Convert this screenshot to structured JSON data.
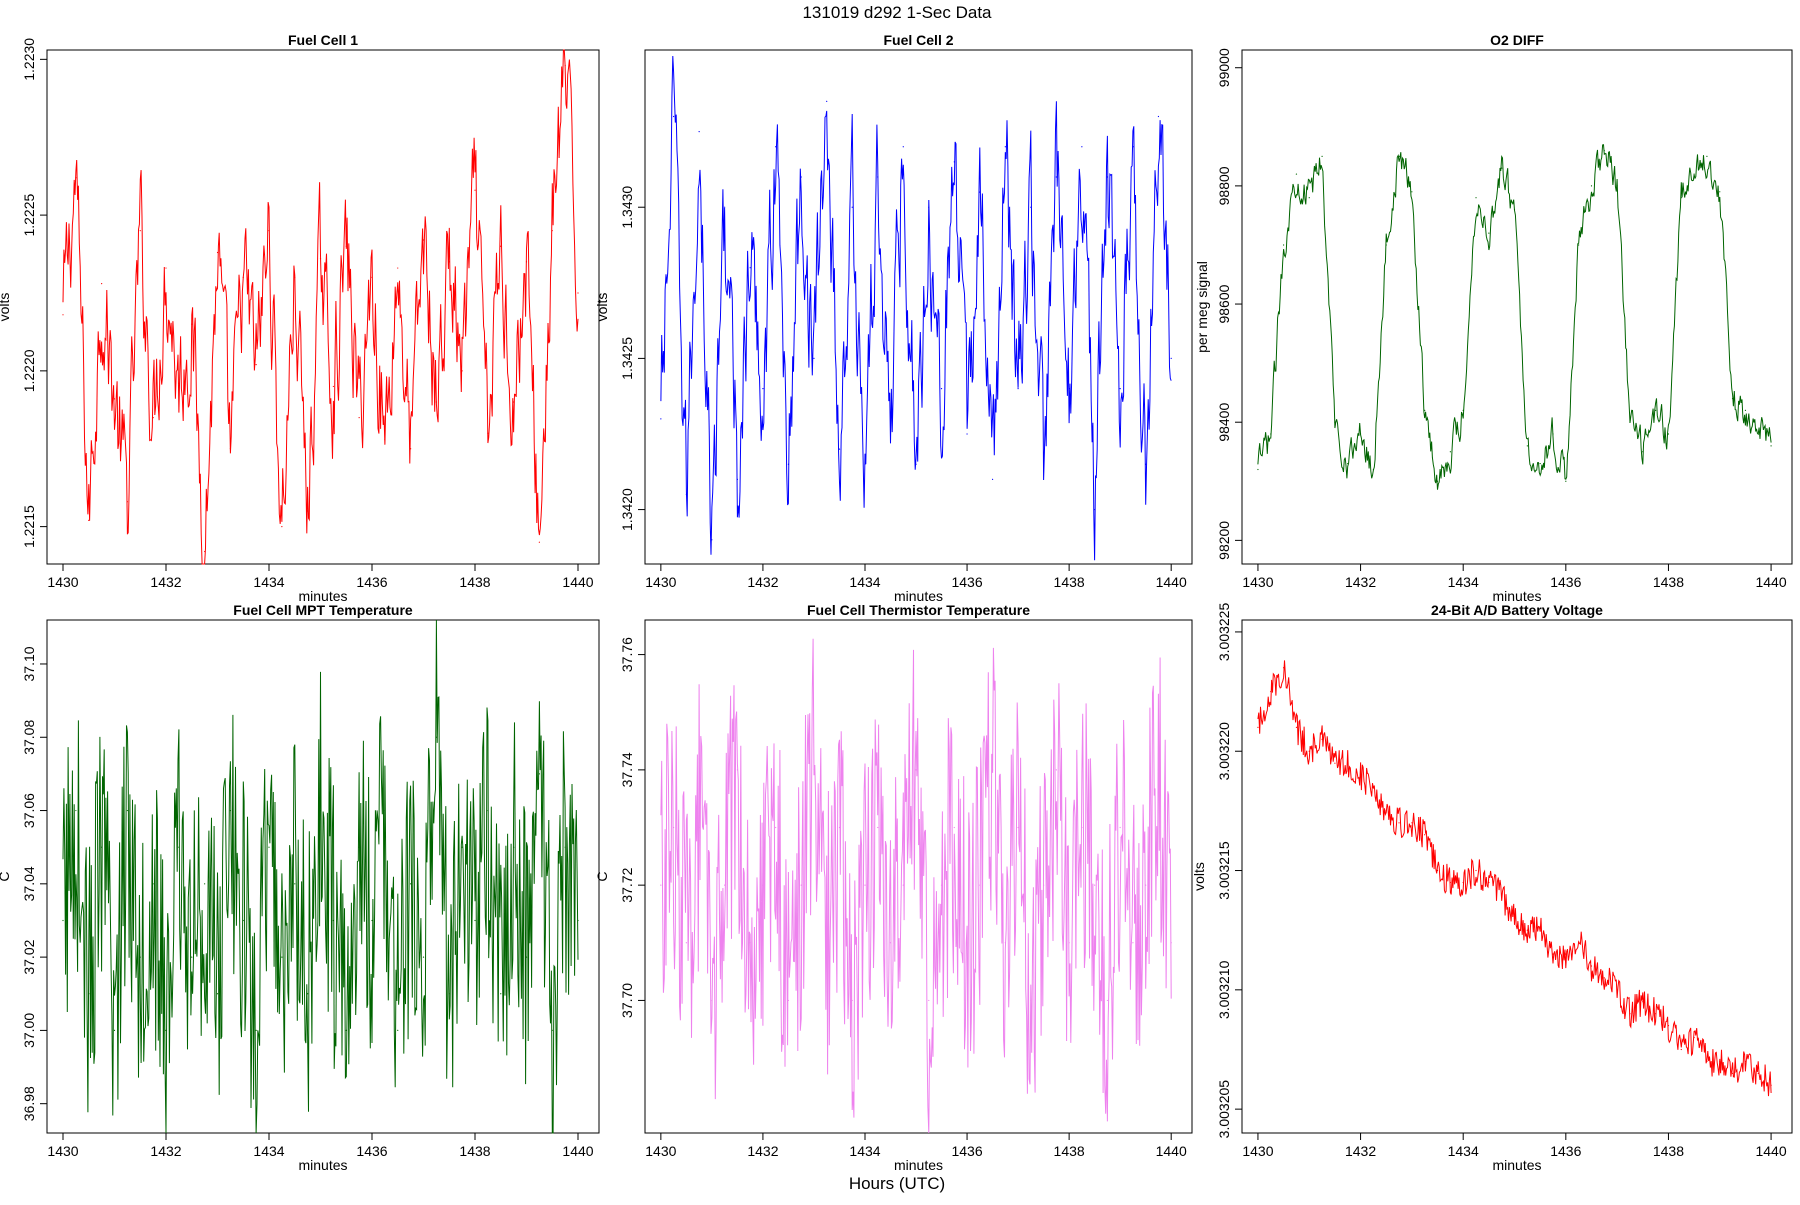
{
  "figure": {
    "title": "131019   d292   1-Sec Data",
    "xlabel": "Hours (UTC)"
  },
  "chart_data": [
    {
      "type": "line",
      "title": "Fuel Cell 1",
      "xlabel": "minutes",
      "ylabel": "volts",
      "color": "#ff0000",
      "xlim": [
        1430,
        1440
      ],
      "ylim": [
        1.22138,
        1.22303
      ],
      "xticks": [
        1430,
        1432,
        1434,
        1436,
        1438,
        1440
      ],
      "xtick_labels": [
        "1430",
        "1432",
        "1434",
        "1436",
        "1438",
        "1440"
      ],
      "yticks": [
        1.2215,
        1.222,
        1.2225,
        1.223
      ],
      "ytick_labels": [
        "1.2215",
        "1.2220",
        "1.2225",
        "1.2230"
      ],
      "x": [
        1430.0,
        1430.25,
        1430.5,
        1430.75,
        1431.0,
        1431.25,
        1431.5,
        1431.75,
        1432.0,
        1432.25,
        1432.5,
        1432.75,
        1433.0,
        1433.25,
        1433.5,
        1433.75,
        1434.0,
        1434.25,
        1434.5,
        1434.75,
        1435.0,
        1435.25,
        1435.5,
        1435.75,
        1436.0,
        1436.25,
        1436.5,
        1436.75,
        1437.0,
        1437.25,
        1437.5,
        1437.75,
        1438.0,
        1438.25,
        1438.5,
        1438.75,
        1439.0,
        1439.25,
        1439.5,
        1439.75,
        1440.0
      ],
      "values": [
        1.22218,
        1.22262,
        1.22152,
        1.22228,
        1.22191,
        1.22158,
        1.22245,
        1.22185,
        1.22233,
        1.22196,
        1.22215,
        1.22142,
        1.22238,
        1.22175,
        1.2223,
        1.22202,
        1.22245,
        1.2215,
        1.2223,
        1.22155,
        1.22236,
        1.22195,
        1.2224,
        1.22185,
        1.2223,
        1.22178,
        1.22233,
        1.22175,
        1.22242,
        1.2219,
        1.22235,
        1.222,
        1.22258,
        1.2218,
        1.2224,
        1.2219,
        1.22235,
        1.22145,
        1.22245,
        1.22298,
        1.22225
      ]
    },
    {
      "type": "line",
      "title": "Fuel Cell 2",
      "xlabel": "minutes",
      "ylabel": "volts",
      "color": "#0000ff",
      "xlim": [
        1430,
        1440
      ],
      "ylim": [
        1.34182,
        1.34352
      ],
      "xticks": [
        1430,
        1432,
        1434,
        1436,
        1438,
        1440
      ],
      "xtick_labels": [
        "1430",
        "1432",
        "1434",
        "1436",
        "1438",
        "1440"
      ],
      "yticks": [
        1.342,
        1.3425,
        1.343
      ],
      "ytick_labels": [
        "1.3420",
        "1.3425",
        "1.3430"
      ],
      "x": [
        1430.0,
        1430.25,
        1430.5,
        1430.75,
        1431.0,
        1431.25,
        1431.5,
        1431.75,
        1432.0,
        1432.25,
        1432.5,
        1432.75,
        1433.0,
        1433.25,
        1433.5,
        1433.75,
        1434.0,
        1434.25,
        1434.5,
        1434.75,
        1435.0,
        1435.25,
        1435.5,
        1435.75,
        1436.0,
        1436.25,
        1436.5,
        1436.75,
        1437.0,
        1437.25,
        1437.5,
        1437.75,
        1438.0,
        1438.25,
        1438.5,
        1438.75,
        1439.0,
        1439.25,
        1439.5,
        1439.75,
        1440.0
      ],
      "values": [
        1.3423,
        1.3433,
        1.34205,
        1.34325,
        1.3419,
        1.343,
        1.3421,
        1.3428,
        1.3424,
        1.3432,
        1.34215,
        1.3431,
        1.3425,
        1.34335,
        1.3422,
        1.343,
        1.34215,
        1.3431,
        1.3423,
        1.3432,
        1.34215,
        1.343,
        1.3424,
        1.34315,
        1.34225,
        1.34305,
        1.3421,
        1.3432,
        1.3424,
        1.343,
        1.34215,
        1.3431,
        1.3424,
        1.3432,
        1.342,
        1.3431,
        1.3424,
        1.3432,
        1.34215,
        1.3433,
        1.3425
      ]
    },
    {
      "type": "line",
      "title": "O2 DIFF",
      "xlabel": "minutes",
      "ylabel": "per meg signal",
      "color": "#006400",
      "xlim": [
        1430,
        1440
      ],
      "ylim": [
        98160,
        99030
      ],
      "xticks": [
        1430,
        1432,
        1434,
        1436,
        1438,
        1440
      ],
      "xtick_labels": [
        "1430",
        "1432",
        "1434",
        "1436",
        "1438",
        "1440"
      ],
      "yticks": [
        98200,
        98400,
        98600,
        98800,
        99000
      ],
      "ytick_labels": [
        "98200",
        "98400",
        "98600",
        "98800",
        "99000"
      ],
      "x": [
        1430.0,
        1430.25,
        1430.5,
        1430.75,
        1431.0,
        1431.25,
        1431.5,
        1431.75,
        1432.0,
        1432.25,
        1432.5,
        1432.75,
        1433.0,
        1433.25,
        1433.5,
        1433.75,
        1434.0,
        1434.25,
        1434.5,
        1434.75,
        1435.0,
        1435.25,
        1435.5,
        1435.75,
        1436.0,
        1436.25,
        1436.5,
        1436.75,
        1437.0,
        1437.25,
        1437.5,
        1437.75,
        1438.0,
        1438.25,
        1438.5,
        1438.75,
        1439.0,
        1439.25,
        1439.5,
        1439.75,
        1440.0
      ],
      "values": [
        98320,
        98380,
        98700,
        98820,
        98780,
        98850,
        98400,
        98330,
        98380,
        98320,
        98700,
        98850,
        98790,
        98420,
        98300,
        98350,
        98420,
        98780,
        98720,
        98830,
        98760,
        98360,
        98330,
        98380,
        98300,
        98700,
        98800,
        98860,
        98800,
        98400,
        98350,
        98420,
        98380,
        98780,
        98820,
        98850,
        98790,
        98440,
        98420,
        98380,
        98360
      ]
    },
    {
      "type": "line",
      "title": "Fuel Cell MPT Temperature",
      "xlabel": "minutes",
      "ylabel": "C",
      "color": "#006400",
      "xlim": [
        1430,
        1440
      ],
      "ylim": [
        36.972,
        37.112
      ],
      "xticks": [
        1430,
        1432,
        1434,
        1436,
        1438,
        1440
      ],
      "xtick_labels": [
        "1430",
        "1432",
        "1434",
        "1436",
        "1438",
        "1440"
      ],
      "yticks": [
        36.98,
        37.0,
        37.02,
        37.04,
        37.06,
        37.08,
        37.1
      ],
      "ytick_labels": [
        "36.98",
        "37.00",
        "37.02",
        "37.04",
        "37.06",
        "37.08",
        "37.10"
      ],
      "x": [
        1430.0,
        1430.25,
        1430.5,
        1430.75,
        1431.0,
        1431.25,
        1431.5,
        1431.75,
        1432.0,
        1432.25,
        1432.5,
        1432.75,
        1433.0,
        1433.25,
        1433.5,
        1433.75,
        1434.0,
        1434.25,
        1434.5,
        1434.75,
        1435.0,
        1435.25,
        1435.5,
        1435.75,
        1436.0,
        1436.25,
        1436.5,
        1436.75,
        1437.0,
        1437.25,
        1437.5,
        1437.75,
        1438.0,
        1438.25,
        1438.5,
        1438.75,
        1439.0,
        1439.25,
        1439.5,
        1439.75,
        1440.0
      ],
      "values": [
        37.03,
        37.06,
        37.01,
        37.05,
        37.0,
        37.06,
        37.02,
        37.04,
        37.0,
        37.05,
        37.02,
        37.04,
        37.01,
        37.06,
        37.03,
        37.0,
        37.05,
        37.02,
        37.04,
        37.01,
        37.06,
        37.03,
        37.0,
        37.05,
        37.03,
        37.06,
        37.0,
        37.04,
        37.02,
        37.08,
        37.01,
        37.05,
        37.03,
        37.06,
        37.01,
        37.05,
        37.02,
        37.07,
        37.0,
        37.05,
        37.03
      ]
    },
    {
      "type": "line",
      "title": "Fuel Cell Thermistor Temperature",
      "xlabel": "minutes",
      "ylabel": "C",
      "color": "#ee82ee",
      "xlim": [
        1430,
        1440
      ],
      "ylim": [
        37.677,
        37.766
      ],
      "xticks": [
        1430,
        1432,
        1434,
        1436,
        1438,
        1440
      ],
      "xtick_labels": [
        "1430",
        "1432",
        "1434",
        "1436",
        "1438",
        "1440"
      ],
      "yticks": [
        37.7,
        37.72,
        37.74,
        37.76
      ],
      "ytick_labels": [
        "37.70",
        "37.72",
        "37.74",
        "37.76"
      ],
      "x": [
        1430.0,
        1430.25,
        1430.5,
        1430.75,
        1431.0,
        1431.25,
        1431.5,
        1431.75,
        1432.0,
        1432.25,
        1432.5,
        1432.75,
        1433.0,
        1433.25,
        1433.5,
        1433.75,
        1434.0,
        1434.25,
        1434.5,
        1434.75,
        1435.0,
        1435.25,
        1435.5,
        1435.75,
        1436.0,
        1436.25,
        1436.5,
        1436.75,
        1437.0,
        1437.25,
        1437.5,
        1437.75,
        1438.0,
        1438.25,
        1438.5,
        1438.75,
        1439.0,
        1439.25,
        1439.5,
        1439.75,
        1440.0
      ],
      "values": [
        37.72,
        37.73,
        37.71,
        37.73,
        37.7,
        37.72,
        37.74,
        37.71,
        37.72,
        37.73,
        37.7,
        37.72,
        37.74,
        37.71,
        37.73,
        37.7,
        37.72,
        37.73,
        37.71,
        37.72,
        37.74,
        37.7,
        37.72,
        37.73,
        37.71,
        37.72,
        37.74,
        37.71,
        37.73,
        37.7,
        37.72,
        37.74,
        37.71,
        37.73,
        37.72,
        37.7,
        37.73,
        37.71,
        37.72,
        37.74,
        37.71
      ]
    },
    {
      "type": "line",
      "title": "24-Bit A/D Battery Voltage",
      "xlabel": "minutes",
      "ylabel": "volts",
      "color": "#ff0000",
      "xlim": [
        1430,
        1440
      ],
      "ylim": [
        3.003204,
        3.0032255
      ],
      "xticks": [
        1430,
        1432,
        1434,
        1436,
        1438,
        1440
      ],
      "xtick_labels": [
        "1430",
        "1432",
        "1434",
        "1436",
        "1438",
        "1440"
      ],
      "yticks": [
        3.003205,
        3.00321,
        3.003215,
        3.00322,
        3.003225
      ],
      "ytick_labels": [
        "3.003205",
        "3.003210",
        "3.003215",
        "3.003220",
        "3.003225"
      ],
      "x": [
        1430.0,
        1430.25,
        1430.5,
        1430.75,
        1431.0,
        1431.25,
        1431.5,
        1431.75,
        1432.0,
        1432.25,
        1432.5,
        1432.75,
        1433.0,
        1433.25,
        1433.5,
        1433.75,
        1434.0,
        1434.25,
        1434.5,
        1434.75,
        1435.0,
        1435.25,
        1435.5,
        1435.75,
        1436.0,
        1436.25,
        1436.5,
        1436.75,
        1437.0,
        1437.25,
        1437.5,
        1437.75,
        1438.0,
        1438.25,
        1438.5,
        1438.75,
        1439.0,
        1439.25,
        1439.5,
        1439.75,
        1440.0
      ],
      "values": [
        3.003221,
        3.0032225,
        3.0032235,
        3.003221,
        3.00322,
        3.0032205,
        3.0032195,
        3.0032195,
        3.003219,
        3.0032185,
        3.0032175,
        3.003217,
        3.003217,
        3.0032165,
        3.003215,
        3.0032145,
        3.0032145,
        3.003215,
        3.0032145,
        3.003214,
        3.003213,
        3.0032125,
        3.0032125,
        3.0032115,
        3.0032115,
        3.003212,
        3.003211,
        3.0032105,
        3.00321,
        3.003209,
        3.0032095,
        3.003209,
        3.0032085,
        3.0032075,
        3.003208,
        3.003207,
        3.003207,
        3.0032065,
        3.003207,
        3.0032065,
        3.003206
      ]
    }
  ]
}
